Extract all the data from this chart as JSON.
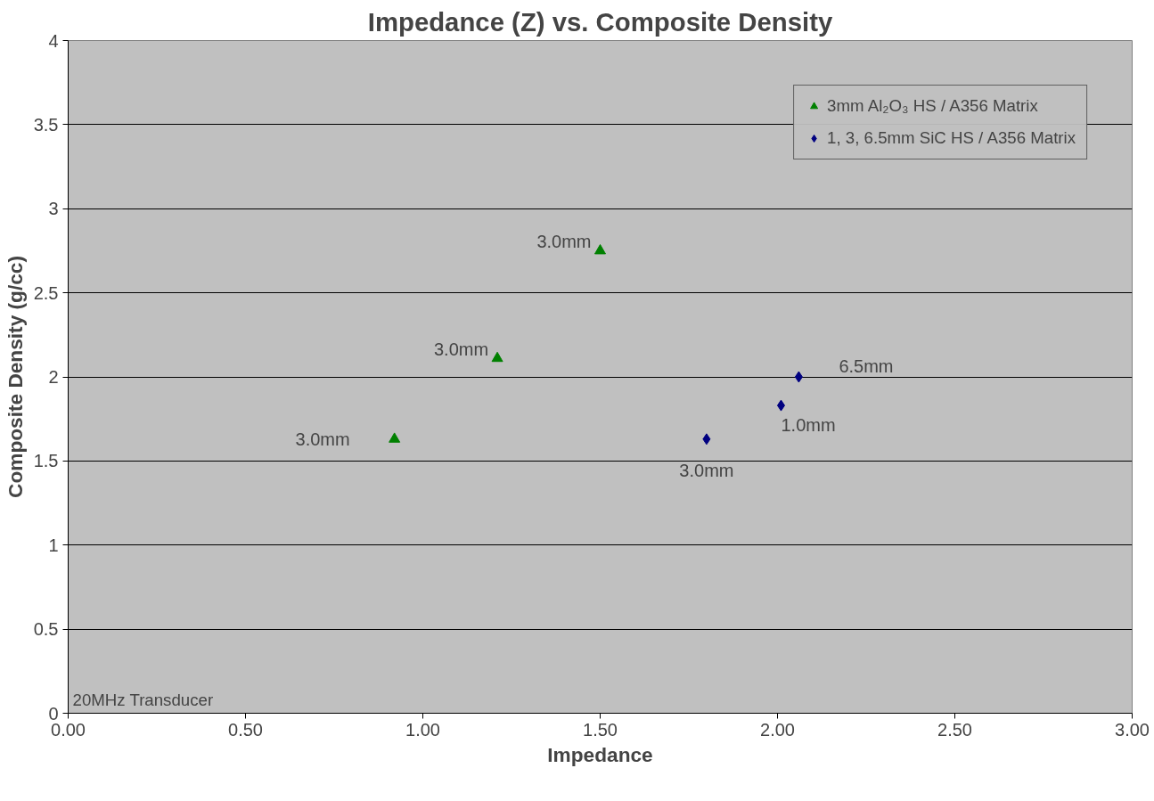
{
  "chart_data": {
    "type": "scatter",
    "title": "Impedance (Z) vs. Composite Density",
    "xlabel": "Impedance",
    "ylabel": "Composite Density (g/cc)",
    "xlim": [
      0,
      3
    ],
    "ylim": [
      0,
      4
    ],
    "xticks": [
      {
        "value": 0,
        "label": "0.00"
      },
      {
        "value": 0.5,
        "label": "0.50"
      },
      {
        "value": 1,
        "label": "1.00"
      },
      {
        "value": 1.5,
        "label": "1.50"
      },
      {
        "value": 2,
        "label": "2.00"
      },
      {
        "value": 2.5,
        "label": "2.50"
      },
      {
        "value": 3,
        "label": "3.00"
      }
    ],
    "yticks": [
      0,
      0.5,
      1,
      1.5,
      2,
      2.5,
      3,
      3.5,
      4
    ],
    "grid": "y",
    "legend": "top right",
    "series": [
      {
        "name": "3mm Al₂O₃ HS / A356 Matrix",
        "color": "#008000",
        "marker": "triangle",
        "x": [
          0.92,
          1.21,
          1.5
        ],
        "values": [
          1.63,
          2.11,
          2.75
        ]
      },
      {
        "name": "1, 3, 6.5mm SiC HS / A356 Matrix",
        "color": "#000080",
        "marker": "diamond",
        "x": [
          1.8,
          2.01,
          2.06
        ],
        "values": [
          1.63,
          1.83,
          2.0
        ]
      }
    ],
    "annotations": [
      {
        "text": "3.0mm",
        "x": 0.92,
        "y": 1.63
      },
      {
        "text": "3.0mm",
        "x": 1.21,
        "y": 2.11
      },
      {
        "text": "3.0mm",
        "x": 1.5,
        "y": 2.75
      },
      {
        "text": "3.0mm",
        "x": 1.8,
        "y": 1.63
      },
      {
        "text": "1.0mm",
        "x": 2.01,
        "y": 1.83
      },
      {
        "text": "6.5mm",
        "x": 2.06,
        "y": 2.0
      },
      "20MHz Transducer"
    ]
  }
}
